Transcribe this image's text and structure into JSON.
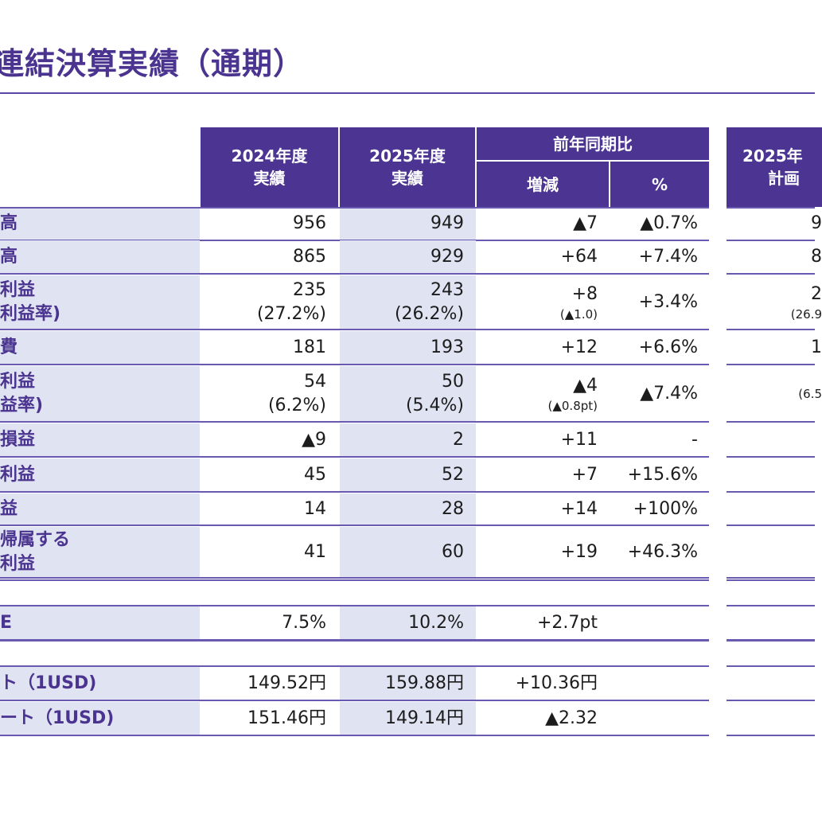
{
  "title": "連結決算実績（通期）",
  "header": {
    "col2024": [
      "2024年度",
      "実績"
    ],
    "col2025": [
      "2025年度",
      "実績"
    ],
    "yoy": "前年同期比",
    "diff": "増減",
    "pct": "%",
    "plan": [
      "2025年",
      "計画"
    ]
  },
  "rows": [
    {
      "label": [
        "高"
      ],
      "v2024": [
        "956"
      ],
      "v2025": [
        "949"
      ],
      "diff": [
        "▲7"
      ],
      "pct": "▲0.7%",
      "plan": [
        "9"
      ]
    },
    {
      "label": [
        "高"
      ],
      "v2024": [
        "865"
      ],
      "v2025": [
        "929"
      ],
      "diff": [
        "+64"
      ],
      "pct": "+7.4%",
      "plan": [
        "8"
      ]
    },
    {
      "label": [
        "利益",
        "利益率)"
      ],
      "v2024": [
        "235",
        "(27.2%)"
      ],
      "v2025": [
        "243",
        "(26.2%)"
      ],
      "diff": [
        "+8",
        "(▲1.0)"
      ],
      "pct": "+3.4%",
      "plan": [
        "2",
        "(26.9"
      ]
    },
    {
      "label": [
        "費"
      ],
      "v2024": [
        "181"
      ],
      "v2025": [
        "193"
      ],
      "diff": [
        "+12"
      ],
      "pct": "+6.6%",
      "plan": [
        "1"
      ]
    },
    {
      "label": [
        "利益",
        "益率)"
      ],
      "v2024": [
        "54",
        "(6.2%)"
      ],
      "v2025": [
        "50",
        "(5.4%)"
      ],
      "diff": [
        "▲4",
        "(▲0.8pt)"
      ],
      "pct": "▲7.4%",
      "plan": [
        "",
        "(6.5"
      ]
    },
    {
      "label": [
        "損益"
      ],
      "v2024": [
        "▲9"
      ],
      "v2025": [
        "2"
      ],
      "diff": [
        "+11"
      ],
      "pct": "-",
      "plan": [
        ""
      ]
    },
    {
      "label": [
        "利益"
      ],
      "v2024": [
        "45"
      ],
      "v2025": [
        "52"
      ],
      "diff": [
        "+7"
      ],
      "pct": "+15.6%",
      "plan": [
        ""
      ]
    },
    {
      "label": [
        "益"
      ],
      "v2024": [
        "14"
      ],
      "v2025": [
        "28"
      ],
      "diff": [
        "+14"
      ],
      "pct": "+100%",
      "plan": [
        ""
      ]
    },
    {
      "label": [
        "帰属する",
        "利益"
      ],
      "v2024": [
        "41"
      ],
      "v2025": [
        "60"
      ],
      "diff": [
        "+19"
      ],
      "pct": "+46.3%",
      "plan": [
        ""
      ]
    },
    {
      "label": [
        "E"
      ],
      "v2024": [
        "7.5%"
      ],
      "v2025": [
        "10.2%"
      ],
      "diff": [
        "+2.7pt"
      ],
      "pct": "",
      "plan": [
        ""
      ]
    },
    {
      "label": [
        "ト（1USD)"
      ],
      "v2024": [
        "149.52円"
      ],
      "v2025": [
        "159.88円"
      ],
      "diff": [
        "+10.36円"
      ],
      "pct": "",
      "plan": [
        ""
      ]
    },
    {
      "label": [
        "ート（1USD)"
      ],
      "v2024": [
        "151.46円"
      ],
      "v2025": [
        "149.14円"
      ],
      "diff": [
        "▲2.32"
      ],
      "pct": "",
      "plan": [
        ""
      ]
    }
  ]
}
